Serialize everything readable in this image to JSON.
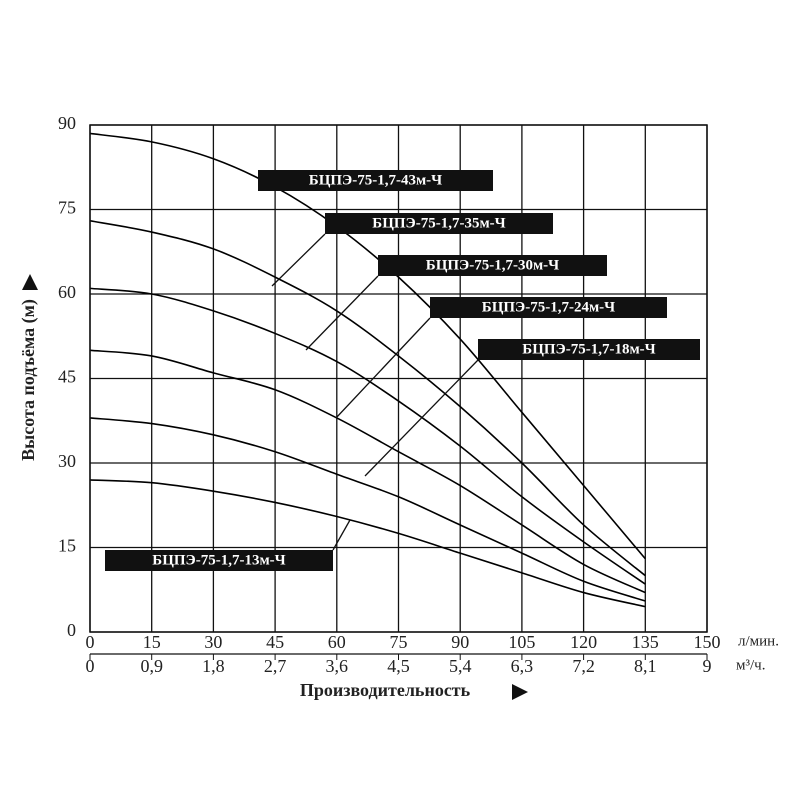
{
  "chart_data": {
    "type": "line",
    "ylabel": "Высота подъёма (м)",
    "xlabel": "Производительность",
    "x_unit": "л/мин.",
    "x2_unit": "м³/ч.",
    "x": [
      0,
      15,
      30,
      45,
      60,
      75,
      90,
      105,
      120,
      135
    ],
    "series": [
      {
        "name": "БЦПЭ-75-1,7-43м-Ч",
        "color": "#000000",
        "values": [
          88.5,
          87,
          84,
          79,
          72,
          63,
          52,
          39,
          26,
          13
        ]
      },
      {
        "name": "БЦПЭ-75-1,7-35м-Ч",
        "color": "#000000",
        "values": [
          73,
          71,
          68,
          63,
          57,
          49,
          40,
          30,
          19,
          10
        ]
      },
      {
        "name": "БЦПЭ-75-1,7-30м-Ч",
        "color": "#000000",
        "values": [
          61,
          60,
          57,
          53,
          48,
          41,
          33,
          24,
          16,
          8.5
        ]
      },
      {
        "name": "БЦПЭ-75-1,7-24м-Ч",
        "color": "#000000",
        "values": [
          50,
          49,
          46,
          43,
          38,
          32,
          26,
          19,
          12,
          7
        ]
      },
      {
        "name": "БЦПЭ-75-1,7-18м-Ч",
        "color": "#000000",
        "values": [
          38,
          37,
          35,
          32,
          28,
          24,
          19,
          14,
          9,
          5.5
        ]
      },
      {
        "name": "БЦПЭ-75-1,7-13м-Ч",
        "color": "#000000",
        "values": [
          27,
          26.5,
          25,
          23,
          20.5,
          17.5,
          14,
          10.5,
          7,
          4.5
        ]
      }
    ],
    "xlim": [
      0,
      150
    ],
    "xticks": [
      0,
      15,
      30,
      45,
      60,
      75,
      90,
      105,
      120,
      135,
      150
    ],
    "x2lim": [
      0,
      9
    ],
    "x2ticks": [
      0,
      {
        "value": 0.9,
        "label": "0,9"
      },
      {
        "value": 1.8,
        "label": "1,8"
      },
      {
        "value": 2.7,
        "label": "2,7"
      },
      {
        "value": 3.6,
        "label": "3,6"
      },
      {
        "value": 4.5,
        "label": "4,5"
      },
      {
        "value": 5.4,
        "label": "5,4"
      },
      {
        "value": 6.3,
        "label": "6,3"
      },
      {
        "value": 7.2,
        "label": "7,2"
      },
      {
        "value": 8.1,
        "label": "8,1"
      },
      9
    ],
    "ylim": [
      0,
      90
    ],
    "yticks": [
      0,
      15,
      30,
      45,
      60,
      75,
      90
    ],
    "grid": true
  }
}
